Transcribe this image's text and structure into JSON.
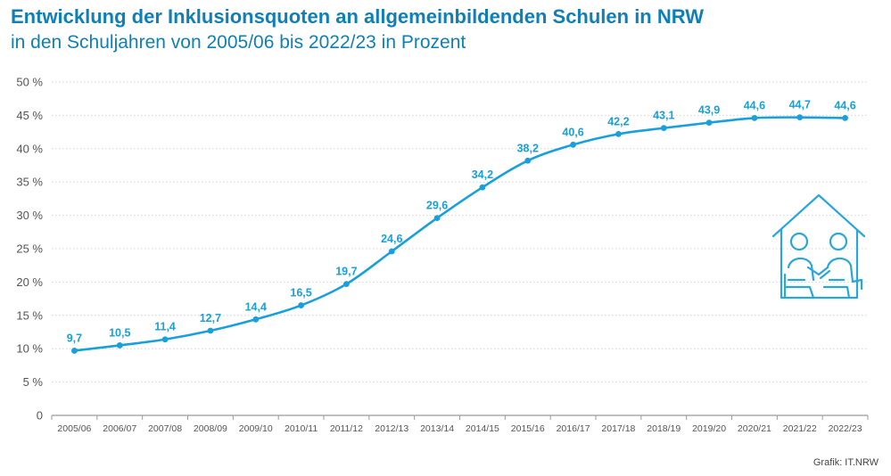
{
  "title": "Entwicklung der Inklusionsquoten an allgemeinbildenden Schulen in NRW",
  "subtitle": "in den Schuljahren von 2005/06 bis 2022/23 in Prozent",
  "source": "Grafik: IT.NRW",
  "colors": {
    "title": "#0f7fb7",
    "line": "#18a0dc",
    "grid": "#c9c9c9",
    "axis": "#9a9a9a",
    "tick_text": "#555555",
    "icon": "#2aa6de"
  },
  "icon": "house-with-two-children-icon",
  "chart_data": {
    "type": "line",
    "categories": [
      "2005/06",
      "2006/07",
      "2007/08",
      "2008/09",
      "2009/10",
      "2010/11",
      "2011/12",
      "2012/13",
      "2013/14",
      "2014/15",
      "2015/16",
      "2016/17",
      "2017/18",
      "2018/19",
      "2019/20",
      "2020/21",
      "2021/22",
      "2022/23"
    ],
    "values": [
      9.7,
      10.5,
      11.4,
      12.7,
      14.4,
      16.5,
      19.7,
      24.6,
      29.6,
      34.2,
      38.2,
      40.6,
      42.2,
      43.1,
      43.9,
      44.6,
      44.7,
      44.6
    ],
    "value_labels": [
      "9,7",
      "10,5",
      "11,4",
      "12,7",
      "14,4",
      "16,5",
      "19,7",
      "24,6",
      "29,6",
      "34,2",
      "38,2",
      "40,6",
      "42,2",
      "43,1",
      "43,9",
      "44,6",
      "44,7",
      "44,6"
    ],
    "yticks": [
      0,
      5,
      10,
      15,
      20,
      25,
      30,
      35,
      40,
      45,
      50
    ],
    "ytick_labels": [
      "0",
      "5 %",
      "10 %",
      "15 %",
      "20 %",
      "25 %",
      "30 %",
      "35 %",
      "40 %",
      "45 %",
      "50 %"
    ],
    "ylim": [
      0,
      50
    ],
    "grid": true,
    "legend": "none"
  }
}
